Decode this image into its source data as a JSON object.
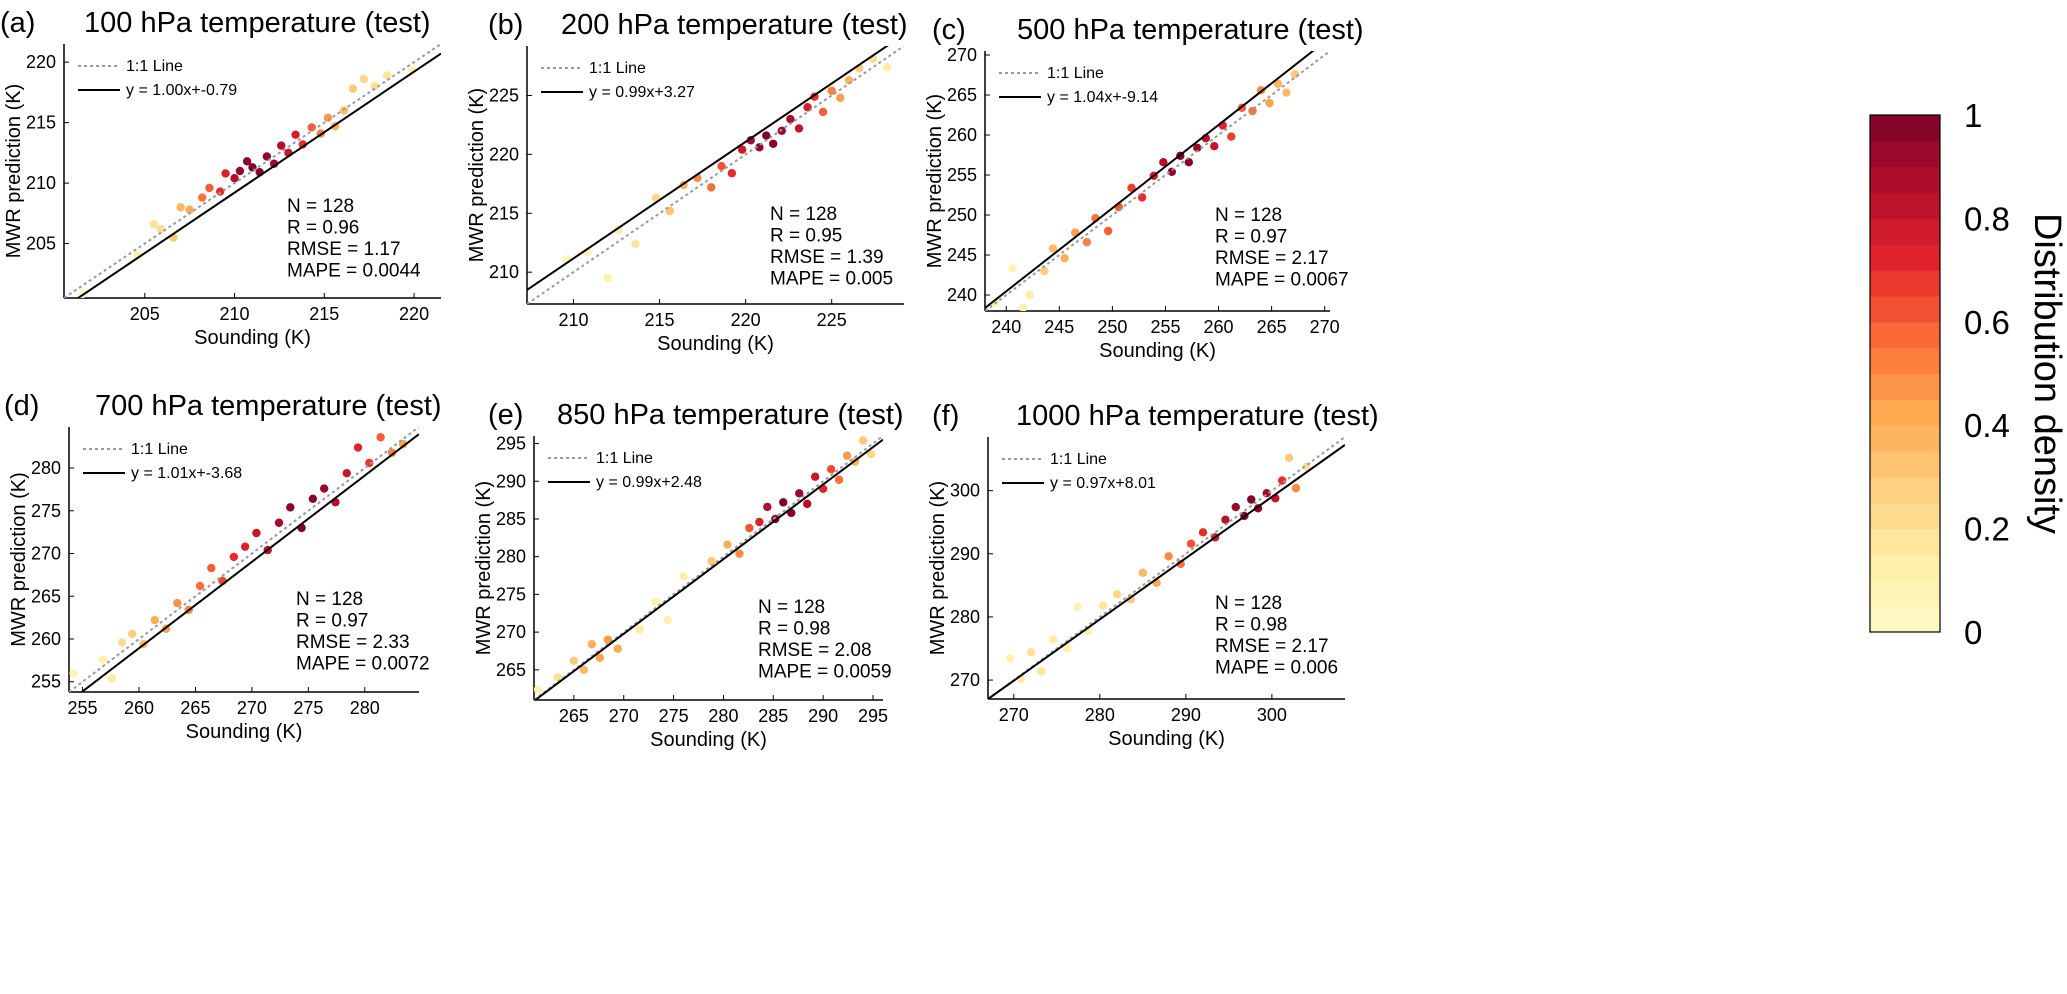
{
  "colorbar": {
    "label": "Distribution density",
    "ticks": [
      "0",
      "0.2",
      "0.4",
      "0.6",
      "0.8",
      "1"
    ],
    "range": [
      0,
      1
    ],
    "steps": 20,
    "colors": [
      "#fff9c8",
      "#feefa6",
      "#fecd7c",
      "#fda84f",
      "#fb6b36",
      "#e3252a",
      "#b50e2b",
      "#7d0327"
    ]
  },
  "style": {
    "one_to_one_color": "#9a9a9a",
    "fit_color": "#000000",
    "axis_color": "#000000"
  },
  "chart_data": [
    {
      "id": "a",
      "type": "scatter",
      "panel_label": "(a)",
      "title": "100 hPa temperature (test)",
      "xlabel": "Sounding (K)",
      "ylabel": "MWR prediction (K)",
      "xlim": [
        200.5,
        221.5
      ],
      "ylim": [
        200.5,
        221.5
      ],
      "xticks": [
        "205",
        "210",
        "215",
        "220"
      ],
      "yticks": [
        "205",
        "210",
        "215",
        "220"
      ],
      "legend": [
        "1:1 Line",
        "y = 1.00x+-0.79"
      ],
      "fit": {
        "slope": 1.0,
        "intercept": -0.79
      },
      "stats": [
        "N = 128",
        "R = 0.96",
        "RMSE = 1.17",
        "MAPE = 0.0044"
      ],
      "sample_points": [
        [
          201.5,
          200.8,
          0.05
        ],
        [
          204.6,
          204.0,
          0.12
        ],
        [
          205.5,
          206.6,
          0.2
        ],
        [
          205.9,
          206.2,
          0.22
        ],
        [
          206.6,
          205.5,
          0.3
        ],
        [
          207.0,
          208.0,
          0.38
        ],
        [
          207.5,
          207.8,
          0.42
        ],
        [
          208.2,
          208.8,
          0.55
        ],
        [
          208.6,
          209.6,
          0.6
        ],
        [
          209.2,
          209.3,
          0.7
        ],
        [
          209.5,
          210.8,
          0.75
        ],
        [
          210.0,
          210.4,
          0.85
        ],
        [
          210.3,
          211.0,
          0.92
        ],
        [
          210.7,
          211.8,
          0.96
        ],
        [
          211.0,
          211.3,
          1.0
        ],
        [
          211.4,
          210.9,
          0.98
        ],
        [
          211.8,
          212.2,
          0.95
        ],
        [
          212.2,
          211.6,
          0.9
        ],
        [
          212.6,
          213.1,
          0.86
        ],
        [
          213.0,
          212.5,
          0.8
        ],
        [
          213.4,
          214.0,
          0.76
        ],
        [
          213.8,
          213.2,
          0.7
        ],
        [
          214.3,
          214.6,
          0.6
        ],
        [
          214.8,
          214.1,
          0.52
        ],
        [
          215.2,
          215.4,
          0.46
        ],
        [
          215.6,
          214.7,
          0.4
        ],
        [
          216.1,
          216.0,
          0.35
        ],
        [
          216.6,
          217.8,
          0.3
        ],
        [
          217.2,
          218.6,
          0.25
        ],
        [
          217.8,
          218.0,
          0.22
        ],
        [
          218.5,
          218.9,
          0.18
        ],
        [
          219.9,
          219.3,
          0.12
        ]
      ]
    },
    {
      "id": "b",
      "type": "scatter",
      "panel_label": "(b)",
      "title": "200 hPa temperature (test)",
      "xlabel": "Sounding (K)",
      "ylabel": "MWR prediction (K)",
      "xlim": [
        207.3,
        229.2
      ],
      "ylim": [
        207.3,
        229.2
      ],
      "xticks": [
        "210",
        "215",
        "220",
        "225"
      ],
      "yticks": [
        "210",
        "215",
        "220",
        "225"
      ],
      "legend": [
        "1:1 Line",
        "y = 0.99x+3.27"
      ],
      "fit": {
        "slope": 0.99,
        "intercept": 3.27
      },
      "stats": [
        "N = 128",
        "R = 0.95",
        "RMSE = 1.39",
        "MAPE = 0.005"
      ],
      "sample_points": [
        [
          209.6,
          211.1,
          0.05
        ],
        [
          210.8,
          211.7,
          0.08
        ],
        [
          212.0,
          209.5,
          0.1
        ],
        [
          212.6,
          213.6,
          0.14
        ],
        [
          213.6,
          212.4,
          0.18
        ],
        [
          214.8,
          216.3,
          0.25
        ],
        [
          215.6,
          215.2,
          0.32
        ],
        [
          216.4,
          217.4,
          0.4
        ],
        [
          217.2,
          218.0,
          0.5
        ],
        [
          218.0,
          217.2,
          0.56
        ],
        [
          218.6,
          219.0,
          0.62
        ],
        [
          219.2,
          218.4,
          0.7
        ],
        [
          219.8,
          220.4,
          0.78
        ],
        [
          220.3,
          221.2,
          0.88
        ],
        [
          220.8,
          220.6,
          0.95
        ],
        [
          221.2,
          221.6,
          1.0
        ],
        [
          221.6,
          220.9,
          0.97
        ],
        [
          222.1,
          222.0,
          0.93
        ],
        [
          222.6,
          223.0,
          0.88
        ],
        [
          223.1,
          222.2,
          0.82
        ],
        [
          223.6,
          224.0,
          0.76
        ],
        [
          224.0,
          224.9,
          0.7
        ],
        [
          224.5,
          223.6,
          0.6
        ],
        [
          225.0,
          225.4,
          0.52
        ],
        [
          225.5,
          224.8,
          0.45
        ],
        [
          226.0,
          226.3,
          0.38
        ],
        [
          226.6,
          227.3,
          0.3
        ],
        [
          227.4,
          228.1,
          0.22
        ],
        [
          228.2,
          227.4,
          0.15
        ]
      ]
    },
    {
      "id": "c",
      "type": "scatter",
      "panel_label": "(c)",
      "title": "500 hPa temperature (test)",
      "xlabel": "Sounding (K)",
      "ylabel": "MWR prediction (K)",
      "xlim": [
        238.0,
        270.5
      ],
      "ylim": [
        238.0,
        270.5
      ],
      "xticks": [
        "240",
        "245",
        "250",
        "255",
        "260",
        "265",
        "270"
      ],
      "yticks": [
        "240",
        "245",
        "250",
        "255",
        "260",
        "265",
        "270"
      ],
      "legend": [
        "1:1 Line",
        "y = 1.04x+-9.14"
      ],
      "fit": {
        "slope": 1.04,
        "intercept": -9.14
      },
      "stats": [
        "N = 128",
        "R = 0.97",
        "RMSE = 2.17",
        "MAPE = 0.0067"
      ],
      "sample_points": [
        [
          239.0,
          239.0,
          0.06
        ],
        [
          240.6,
          243.3,
          0.1
        ],
        [
          241.6,
          238.4,
          0.12
        ],
        [
          242.2,
          240.0,
          0.15
        ],
        [
          243.6,
          243.0,
          0.28
        ],
        [
          244.4,
          245.8,
          0.35
        ],
        [
          245.5,
          244.6,
          0.4
        ],
        [
          246.5,
          247.8,
          0.45
        ],
        [
          247.6,
          246.6,
          0.52
        ],
        [
          248.4,
          249.6,
          0.56
        ],
        [
          249.6,
          248.0,
          0.6
        ],
        [
          250.6,
          251.0,
          0.62
        ],
        [
          251.8,
          253.4,
          0.66
        ],
        [
          252.8,
          252.2,
          0.7
        ],
        [
          253.9,
          254.9,
          0.78
        ],
        [
          254.8,
          256.6,
          0.86
        ],
        [
          255.6,
          255.4,
          0.95
        ],
        [
          256.4,
          257.4,
          1.0
        ],
        [
          257.2,
          256.6,
          0.97
        ],
        [
          258.0,
          258.4,
          0.92
        ],
        [
          258.8,
          259.6,
          0.86
        ],
        [
          259.6,
          258.6,
          0.8
        ],
        [
          260.4,
          261.2,
          0.72
        ],
        [
          261.2,
          259.8,
          0.66
        ],
        [
          262.2,
          263.4,
          0.6
        ],
        [
          263.2,
          263.0,
          0.55
        ],
        [
          264.0,
          265.6,
          0.5
        ],
        [
          264.8,
          264.0,
          0.44
        ],
        [
          265.6,
          266.4,
          0.38
        ],
        [
          266.4,
          265.3,
          0.35
        ],
        [
          267.2,
          267.6,
          0.3
        ]
      ]
    },
    {
      "id": "d",
      "type": "scatter",
      "panel_label": "(d)",
      "title": "700 hPa temperature (test)",
      "xlabel": "Sounding (K)",
      "ylabel": "MWR prediction (K)",
      "xlim": [
        253.8,
        284.8
      ],
      "ylim": [
        253.8,
        284.8
      ],
      "xticks": [
        "255",
        "260",
        "265",
        "270",
        "275",
        "280"
      ],
      "yticks": [
        "255",
        "260",
        "265",
        "270",
        "275",
        "280"
      ],
      "legend": [
        "1:1 Line",
        "y = 1.01x+-3.68"
      ],
      "fit": {
        "slope": 1.01,
        "intercept": -3.68
      },
      "stats": [
        "N = 128",
        "R = 0.97",
        "RMSE = 2.33",
        "MAPE = 0.0072"
      ],
      "sample_points": [
        [
          254.2,
          256.0,
          0.08
        ],
        [
          256.8,
          257.6,
          0.12
        ],
        [
          257.6,
          255.4,
          0.16
        ],
        [
          258.5,
          259.6,
          0.22
        ],
        [
          259.4,
          260.6,
          0.28
        ],
        [
          260.4,
          259.4,
          0.34
        ],
        [
          261.4,
          262.2,
          0.4
        ],
        [
          262.4,
          261.2,
          0.44
        ],
        [
          263.4,
          264.2,
          0.48
        ],
        [
          264.4,
          263.4,
          0.52
        ],
        [
          265.4,
          266.2,
          0.56
        ],
        [
          266.4,
          268.3,
          0.6
        ],
        [
          267.4,
          266.8,
          0.64
        ],
        [
          268.4,
          269.6,
          0.7
        ],
        [
          269.4,
          270.8,
          0.74
        ],
        [
          270.4,
          272.4,
          0.8
        ],
        [
          271.4,
          270.4,
          0.84
        ],
        [
          272.4,
          273.6,
          0.9
        ],
        [
          273.4,
          275.4,
          0.96
        ],
        [
          274.4,
          273.0,
          1.0
        ],
        [
          275.4,
          276.4,
          0.97
        ],
        [
          276.4,
          277.6,
          0.92
        ],
        [
          277.4,
          276.0,
          0.86
        ],
        [
          278.4,
          279.4,
          0.8
        ],
        [
          279.4,
          282.4,
          0.74
        ],
        [
          280.4,
          280.6,
          0.68
        ],
        [
          281.4,
          283.6,
          0.6
        ],
        [
          282.4,
          281.8,
          0.52
        ],
        [
          283.4,
          282.8,
          0.45
        ]
      ]
    },
    {
      "id": "e",
      "type": "scatter",
      "panel_label": "(e)",
      "title": "850 hPa temperature (test)",
      "xlabel": "Sounding (K)",
      "ylabel": "MWR prediction (K)",
      "xlim": [
        261.0,
        296.0
      ],
      "ylim": [
        261.0,
        296.0
      ],
      "xticks": [
        "265",
        "270",
        "275",
        "280",
        "285",
        "290",
        "295"
      ],
      "yticks": [
        "265",
        "270",
        "275",
        "280",
        "285",
        "290",
        "295"
      ],
      "legend": [
        "1:1 Line",
        "y = 0.99x+2.48"
      ],
      "fit": {
        "slope": 0.99,
        "intercept": 2.48
      },
      "stats": [
        "N = 128",
        "R = 0.98",
        "RMSE = 2.08",
        "MAPE = 0.0059"
      ],
      "sample_points": [
        [
          261.4,
          262.4,
          0.1
        ],
        [
          263.4,
          264.0,
          0.2
        ],
        [
          265.0,
          266.2,
          0.3
        ],
        [
          266.0,
          265.0,
          0.36
        ],
        [
          266.8,
          268.4,
          0.4
        ],
        [
          267.6,
          266.6,
          0.44
        ],
        [
          268.4,
          269.0,
          0.46
        ],
        [
          269.4,
          267.8,
          0.42
        ],
        [
          271.6,
          270.4,
          0.16
        ],
        [
          273.2,
          274.0,
          0.12
        ],
        [
          274.4,
          271.6,
          0.1
        ],
        [
          276.0,
          277.4,
          0.14
        ],
        [
          278.8,
          279.4,
          0.3
        ],
        [
          280.4,
          281.6,
          0.4
        ],
        [
          281.6,
          280.4,
          0.5
        ],
        [
          282.6,
          283.8,
          0.62
        ],
        [
          283.6,
          284.6,
          0.74
        ],
        [
          284.4,
          286.6,
          0.86
        ],
        [
          285.2,
          285.0,
          0.95
        ],
        [
          286.0,
          287.2,
          1.0
        ],
        [
          286.8,
          285.8,
          0.97
        ],
        [
          287.6,
          288.4,
          0.92
        ],
        [
          288.4,
          287.0,
          0.86
        ],
        [
          289.2,
          290.6,
          0.8
        ],
        [
          290.0,
          289.0,
          0.72
        ],
        [
          290.8,
          291.6,
          0.64
        ],
        [
          291.6,
          290.2,
          0.56
        ],
        [
          292.4,
          293.4,
          0.46
        ],
        [
          293.2,
          292.6,
          0.38
        ],
        [
          294.0,
          295.4,
          0.3
        ],
        [
          294.8,
          293.6,
          0.24
        ]
      ]
    },
    {
      "id": "f",
      "type": "scatter",
      "panel_label": "(f)",
      "title": "1000 hPa temperature (test)",
      "xlabel": "Sounding (K)",
      "ylabel": "MWR prediction (K)",
      "xlim": [
        267.0,
        308.5
      ],
      "ylim": [
        267.0,
        308.5
      ],
      "xticks": [
        "270",
        "280",
        "290",
        "300"
      ],
      "yticks": [
        "270",
        "280",
        "290",
        "300"
      ],
      "legend": [
        "1:1 Line",
        "y = 0.97x+8.01"
      ],
      "fit": {
        "slope": 0.97,
        "intercept": 8.01
      },
      "stats": [
        "N = 128",
        "R = 0.98",
        "RMSE = 2.17",
        "MAPE = 0.006"
      ],
      "sample_points": [
        [
          269.6,
          273.4,
          0.12
        ],
        [
          270.8,
          270.2,
          0.16
        ],
        [
          272.0,
          274.4,
          0.2
        ],
        [
          273.2,
          271.4,
          0.18
        ],
        [
          274.6,
          276.4,
          0.15
        ],
        [
          276.2,
          275.0,
          0.12
        ],
        [
          277.4,
          281.6,
          0.1
        ],
        [
          278.6,
          277.8,
          0.14
        ],
        [
          280.4,
          281.8,
          0.18
        ],
        [
          282.0,
          283.6,
          0.24
        ],
        [
          283.6,
          282.8,
          0.3
        ],
        [
          285.0,
          287.0,
          0.36
        ],
        [
          286.6,
          285.4,
          0.42
        ],
        [
          288.0,
          289.6,
          0.5
        ],
        [
          289.4,
          288.4,
          0.56
        ],
        [
          290.6,
          291.6,
          0.62
        ],
        [
          292.0,
          293.4,
          0.7
        ],
        [
          293.4,
          292.6,
          0.76
        ],
        [
          294.6,
          295.4,
          0.84
        ],
        [
          295.8,
          297.4,
          0.92
        ],
        [
          296.8,
          296.0,
          0.98
        ],
        [
          297.6,
          298.6,
          1.0
        ],
        [
          298.4,
          297.2,
          0.96
        ],
        [
          299.4,
          299.6,
          0.9
        ],
        [
          300.4,
          298.8,
          0.82
        ],
        [
          301.2,
          301.6,
          0.7
        ],
        [
          302.0,
          305.2,
          0.3
        ],
        [
          302.8,
          300.4,
          0.5
        ],
        [
          304.0,
          303.8,
          0.2
        ]
      ]
    }
  ]
}
